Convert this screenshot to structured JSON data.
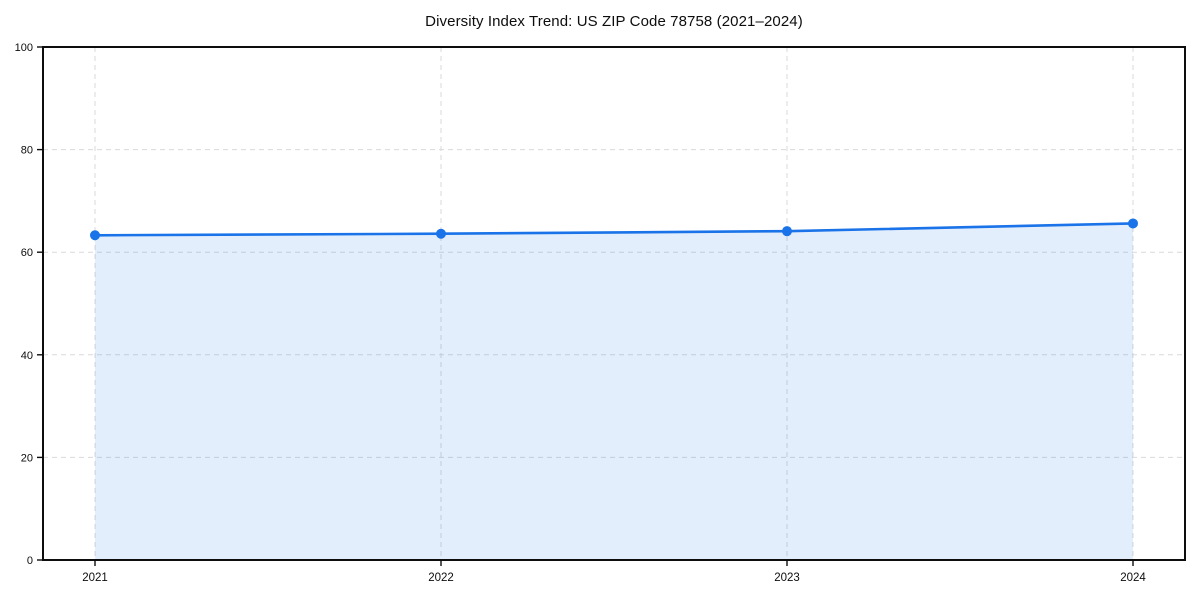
{
  "title": "Diversity Index Trend: US ZIP Code 78758 (2021–2024)",
  "chart_data": {
    "type": "area",
    "title": "Diversity Index Trend: US ZIP Code 78758 (2021–2024)",
    "categories": [
      "2021",
      "2022",
      "2023",
      "2024"
    ],
    "series": [
      {
        "name": "Diversity Index",
        "values": [
          63.3,
          63.6,
          64.1,
          65.6
        ]
      }
    ],
    "xlabel": "",
    "ylabel": "",
    "ylim": [
      0,
      100
    ],
    "yticks": [
      0,
      20,
      40,
      60,
      80,
      100
    ],
    "grid": true,
    "grid_style": "dashed",
    "legend": false,
    "colors": {
      "line": "#1a73e8",
      "marker": "#1a73e8",
      "fill": "rgba(26,115,232,0.12)",
      "grid": "#d9d9d9",
      "spine": "#0d0d0d",
      "tick_text": "#0d0d0d",
      "background": "#ffffff"
    }
  }
}
